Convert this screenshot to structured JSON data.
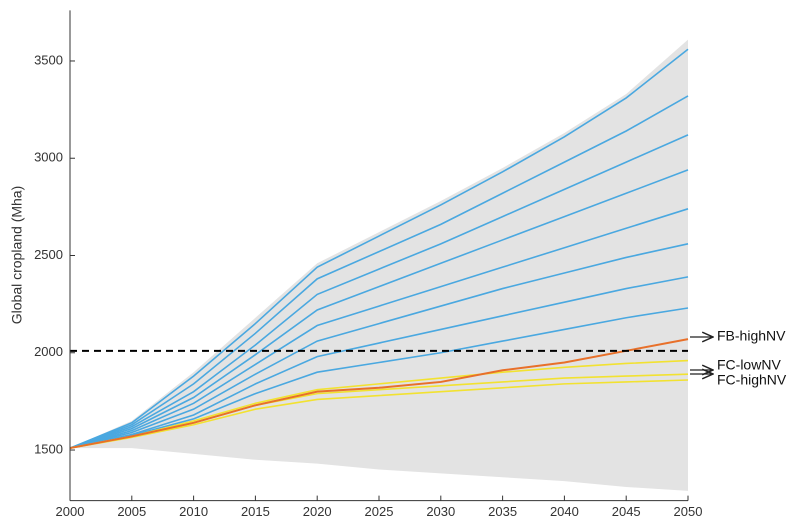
{
  "chart_data": {
    "type": "line",
    "y_label": "Global cropland (Mha)",
    "x": [
      2000,
      2005,
      2010,
      2015,
      2020,
      2025,
      2030,
      2035,
      2040,
      2045,
      2050
    ],
    "xlim": [
      2000,
      2050
    ],
    "xticks": [
      2000,
      2005,
      2010,
      2015,
      2020,
      2025,
      2030,
      2035,
      2040,
      2045,
      2050
    ],
    "ylim": [
      1240,
      3760
    ],
    "yticks": [
      1500,
      2000,
      2500,
      3000,
      3500
    ],
    "grid": false,
    "envelope": {
      "color": "#e3e3e3",
      "upper": [
        1510,
        1650,
        1900,
        2180,
        2460,
        2620,
        2780,
        2950,
        3130,
        3330,
        3610
      ],
      "lower": [
        1510,
        1510,
        1480,
        1450,
        1430,
        1400,
        1380,
        1360,
        1340,
        1310,
        1290
      ]
    },
    "series": [
      {
        "color": "#4aa8e0",
        "values": [
          1510,
          1640,
          1880,
          2150,
          2440,
          2600,
          2760,
          2930,
          3110,
          3310,
          3560
        ]
      },
      {
        "color": "#4aa8e0",
        "values": [
          1510,
          1630,
          1840,
          2100,
          2380,
          2520,
          2660,
          2820,
          2980,
          3140,
          3320
        ]
      },
      {
        "color": "#4aa8e0",
        "values": [
          1510,
          1620,
          1800,
          2040,
          2300,
          2430,
          2560,
          2700,
          2840,
          2980,
          3120
        ]
      },
      {
        "color": "#4aa8e0",
        "values": [
          1510,
          1610,
          1770,
          1990,
          2220,
          2340,
          2460,
          2580,
          2700,
          2820,
          2940
        ]
      },
      {
        "color": "#4aa8e0",
        "values": [
          1510,
          1600,
          1740,
          1940,
          2140,
          2240,
          2340,
          2440,
          2540,
          2640,
          2740
        ]
      },
      {
        "color": "#4aa8e0",
        "values": [
          1510,
          1590,
          1710,
          1890,
          2060,
          2150,
          2240,
          2330,
          2410,
          2490,
          2560
        ]
      },
      {
        "color": "#4aa8e0",
        "values": [
          1510,
          1580,
          1680,
          1840,
          1980,
          2050,
          2120,
          2190,
          2260,
          2330,
          2390
        ]
      },
      {
        "color": "#4aa8e0",
        "values": [
          1510,
          1575,
          1660,
          1790,
          1900,
          1950,
          2000,
          2060,
          2120,
          2180,
          2230
        ]
      },
      {
        "color": "#f2e230",
        "values": [
          1510,
          1570,
          1650,
          1740,
          1810,
          1840,
          1870,
          1900,
          1925,
          1945,
          1960
        ]
      },
      {
        "color": "#f2e230",
        "values": [
          1510,
          1570,
          1640,
          1730,
          1790,
          1810,
          1830,
          1850,
          1870,
          1880,
          1890
        ]
      },
      {
        "color": "#f2e230",
        "values": [
          1510,
          1565,
          1630,
          1710,
          1760,
          1780,
          1800,
          1820,
          1840,
          1850,
          1860
        ]
      },
      {
        "color": "#e8702a",
        "values": [
          1510,
          1570,
          1640,
          1730,
          1800,
          1820,
          1850,
          1910,
          1950,
          2010,
          2070
        ]
      }
    ],
    "hline": {
      "value": 2010,
      "color": "#000000",
      "style": "dashed"
    },
    "annotations": [
      "FB-highNV",
      "FC-lowNV",
      "FC-highNV"
    ]
  }
}
